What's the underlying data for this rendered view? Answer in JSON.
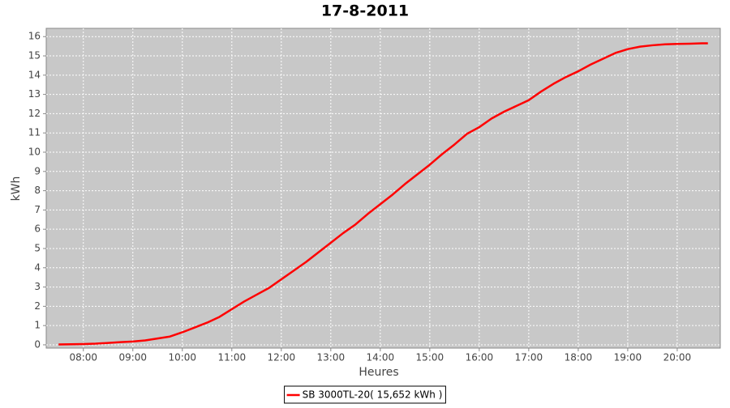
{
  "chart_data": {
    "type": "line",
    "title": "17-8-2011",
    "x_label": "Heures",
    "y_label": "kWh",
    "x": [
      7.5,
      7.75,
      8.0,
      8.25,
      8.5,
      8.75,
      9.0,
      9.25,
      9.5,
      9.75,
      10.0,
      10.25,
      10.5,
      10.75,
      11.0,
      11.25,
      11.5,
      11.75,
      12.0,
      12.25,
      12.5,
      12.75,
      13.0,
      13.25,
      13.5,
      13.75,
      14.0,
      14.25,
      14.5,
      14.75,
      15.0,
      15.25,
      15.5,
      15.75,
      16.0,
      16.25,
      16.5,
      16.75,
      17.0,
      17.25,
      17.5,
      17.75,
      18.0,
      18.25,
      18.5,
      18.75,
      19.0,
      19.25,
      19.5,
      19.75,
      20.0,
      20.25,
      20.5,
      20.62
    ],
    "series": [
      {
        "name": "SB 3000TL-20( 15,652 kWh )",
        "color": "#ff0000",
        "values": [
          0.02,
          0.03,
          0.04,
          0.06,
          0.1,
          0.14,
          0.17,
          0.23,
          0.33,
          0.43,
          0.65,
          0.9,
          1.15,
          1.45,
          1.85,
          2.25,
          2.6,
          2.95,
          3.4,
          3.85,
          4.3,
          4.8,
          5.3,
          5.8,
          6.25,
          6.8,
          7.3,
          7.8,
          8.35,
          8.85,
          9.35,
          9.9,
          10.4,
          10.95,
          11.3,
          11.75,
          12.1,
          12.4,
          12.7,
          13.15,
          13.55,
          13.9,
          14.2,
          14.55,
          14.85,
          15.15,
          15.35,
          15.48,
          15.55,
          15.6,
          15.62,
          15.63,
          15.65,
          15.652
        ]
      }
    ],
    "xlim": [
      7.25,
      20.87
    ],
    "ylim": [
      -0.17,
      16.43
    ],
    "xticks": [
      {
        "value": 8,
        "label": "08:00"
      },
      {
        "value": 9,
        "label": "09:00"
      },
      {
        "value": 10,
        "label": "10:00"
      },
      {
        "value": 11,
        "label": "11:00"
      },
      {
        "value": 12,
        "label": "12:00"
      },
      {
        "value": 13,
        "label": "13:00"
      },
      {
        "value": 14,
        "label": "14:00"
      },
      {
        "value": 15,
        "label": "15:00"
      },
      {
        "value": 16,
        "label": "16:00"
      },
      {
        "value": 17,
        "label": "17:00"
      },
      {
        "value": 18,
        "label": "18:00"
      },
      {
        "value": 19,
        "label": "19:00"
      },
      {
        "value": 20,
        "label": "20:00"
      }
    ],
    "yticks": [
      0,
      1,
      2,
      3,
      4,
      5,
      6,
      7,
      8,
      9,
      10,
      11,
      12,
      13,
      14,
      15,
      16
    ],
    "grid": true,
    "legend": "bottom",
    "plot_background": "#c8c8c8"
  }
}
